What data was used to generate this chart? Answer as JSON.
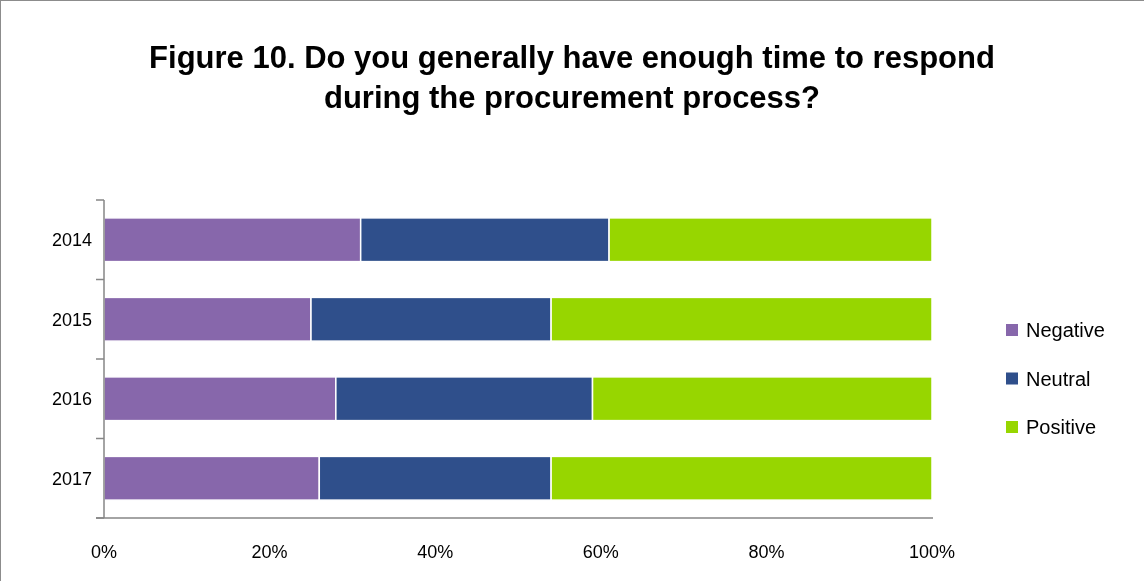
{
  "chart_data": {
    "type": "bar",
    "orientation": "horizontal",
    "stacked": true,
    "title": "Figure 10. Do you generally have enough time to respond during the procurement process?",
    "categories": [
      "2014",
      "2015",
      "2016",
      "2017"
    ],
    "series": [
      {
        "name": "Negative",
        "color": "#8767ab",
        "values": [
          31,
          25,
          28,
          26
        ]
      },
      {
        "name": "Neutral",
        "color": "#2f4f8b",
        "values": [
          30,
          29,
          31,
          28
        ]
      },
      {
        "name": "Positive",
        "color": "#97d600",
        "values": [
          39,
          46,
          41,
          46
        ]
      }
    ],
    "xlim": [
      0,
      100
    ],
    "xticks": [
      {
        "value": 0,
        "label": "0%"
      },
      {
        "value": 20,
        "label": "20%"
      },
      {
        "value": 40,
        "label": "40%"
      },
      {
        "value": 60,
        "label": "60%"
      },
      {
        "value": 80,
        "label": "80%"
      },
      {
        "value": 100,
        "label": "100%"
      }
    ],
    "legend": "right"
  }
}
